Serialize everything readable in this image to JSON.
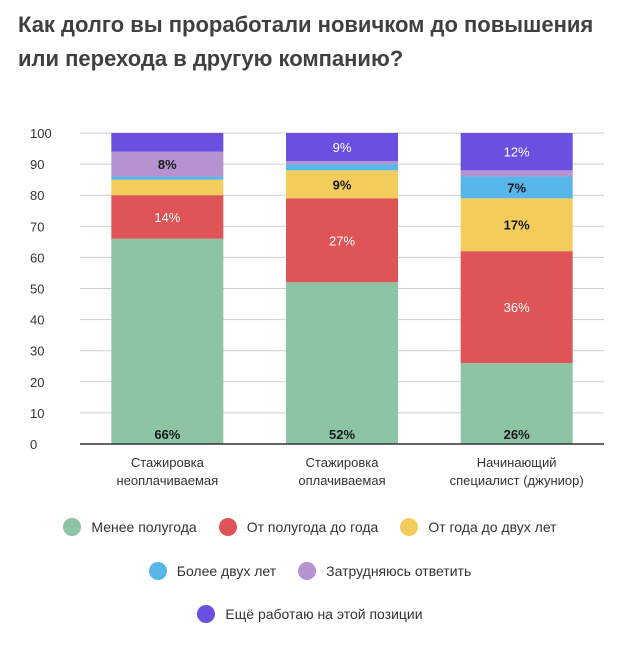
{
  "title": "Как долго вы проработали новичком до повышения или перехода в другую компанию?",
  "chart_data": {
    "type": "bar",
    "stacked": true,
    "title": "Как долго вы проработали новичком до повышения или перехода в другую компанию?",
    "categories": [
      [
        "Стажировка",
        "неоплачиваемая"
      ],
      [
        "Стажировка",
        "оплачиваемая"
      ],
      [
        "Начинающий",
        "специалист (джуниор)"
      ]
    ],
    "ylim": [
      0,
      100
    ],
    "yticks": [
      0,
      10,
      20,
      30,
      40,
      50,
      60,
      70,
      80,
      90,
      100
    ],
    "grid": true,
    "legend_position": "bottom",
    "series": [
      {
        "name": "Менее полугода",
        "color": "#8cc4a5",
        "values": [
          66,
          52,
          26
        ],
        "labels": [
          "66%",
          "52%",
          "26%"
        ],
        "label_color": "#1a1a1a"
      },
      {
        "name": "От полугода до года",
        "color": "#df5456",
        "values": [
          14,
          27,
          36
        ],
        "labels": [
          "14%",
          "27%",
          "36%"
        ],
        "label_color": "#ffffff"
      },
      {
        "name": "От года до двух лет",
        "color": "#f2cd5c",
        "values": [
          5,
          9,
          17
        ],
        "labels": [
          "",
          "9%",
          "17%"
        ],
        "label_color": "#1a1a1a"
      },
      {
        "name": "Более двух лет",
        "color": "#58b7ea",
        "values": [
          1,
          2,
          7
        ],
        "labels": [
          "",
          "",
          "7%"
        ],
        "label_color": "#1a1a1a"
      },
      {
        "name": "Затрудняюсь ответить",
        "color": "#b593d1",
        "values": [
          8,
          1,
          2
        ],
        "labels": [
          "8%",
          "",
          ""
        ],
        "label_color": "#1a1a1a"
      },
      {
        "name": "Ещё работаю на этой позиции",
        "color": "#6a4fe0",
        "values": [
          6,
          9,
          12
        ],
        "labels": [
          "",
          "9%",
          "12%"
        ],
        "label_color": "#ffffff"
      }
    ]
  }
}
